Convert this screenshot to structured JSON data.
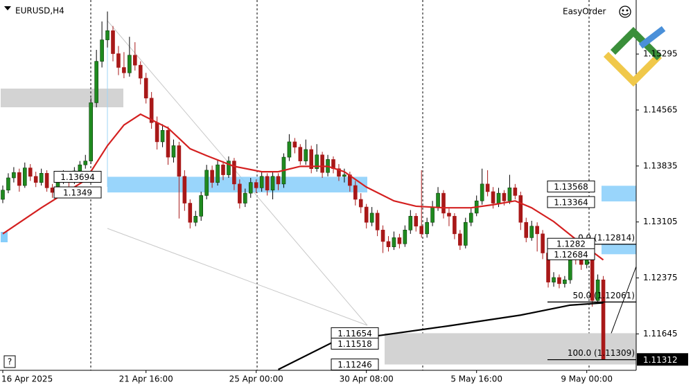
{
  "header": {
    "title": "EURUSD,H4",
    "tool": "EasyOrder",
    "help": "?"
  },
  "chart_data": {
    "type": "candlestick",
    "title": "EURUSD,H4",
    "categories": [
      "16 Apr 2025",
      null,
      null,
      null,
      null,
      null,
      null,
      null,
      null,
      null,
      null,
      null,
      null,
      null,
      null,
      null,
      null,
      null,
      null,
      null,
      null,
      null,
      null,
      null,
      null,
      null,
      "21 Apr 16:00",
      null,
      null,
      null,
      null,
      null,
      null,
      null,
      null,
      null,
      null,
      null,
      null,
      null,
      null,
      null,
      null,
      null,
      null,
      null,
      "25 Apr 00:00",
      null,
      null,
      null,
      null,
      null,
      null,
      null,
      null,
      null,
      null,
      null,
      null,
      null,
      null,
      null,
      null,
      null,
      null,
      null,
      "30 Apr 08:00",
      null,
      null,
      null,
      null,
      null,
      null,
      null,
      null,
      null,
      null,
      null,
      null,
      null,
      null,
      null,
      null,
      null,
      null,
      null,
      "5 May 16:00",
      null,
      null,
      null,
      null,
      null,
      null,
      null,
      null,
      null,
      null,
      null,
      null,
      null,
      null,
      null,
      null,
      null,
      null,
      null,
      "9 May 00:00",
      null,
      null,
      null
    ],
    "candles": [
      [
        1.134,
        1.1358,
        1.1335,
        1.1352
      ],
      [
        1.1352,
        1.1374,
        1.1348,
        1.1368
      ],
      [
        1.1368,
        1.1382,
        1.1362,
        1.1375
      ],
      [
        1.1375,
        1.138,
        1.135,
        1.1358
      ],
      [
        1.1358,
        1.1388,
        1.1355,
        1.1381
      ],
      [
        1.1381,
        1.1386,
        1.1364,
        1.137
      ],
      [
        1.137,
        1.1376,
        1.1356,
        1.1362
      ],
      [
        1.1362,
        1.138,
        1.1358,
        1.1374
      ],
      [
        1.1374,
        1.1378,
        1.135,
        1.1355
      ],
      [
        1.1355,
        1.136,
        1.1342,
        1.1349
      ],
      [
        1.1349,
        1.1372,
        1.1345,
        1.1366
      ],
      [
        1.1366,
        1.1378,
        1.136,
        1.1372
      ],
      [
        1.1372,
        1.1376,
        1.1356,
        1.1363
      ],
      [
        1.1363,
        1.1382,
        1.136,
        1.1377
      ],
      [
        1.1377,
        1.139,
        1.1372,
        1.1385
      ],
      [
        1.1385,
        1.1398,
        1.138,
        1.139
      ],
      [
        1.139,
        1.1472,
        1.1386,
        1.1466
      ],
      [
        1.1466,
        1.1535,
        1.146,
        1.152
      ],
      [
        1.152,
        1.1572,
        1.1512,
        1.1548
      ],
      [
        1.1548,
        1.1585,
        1.1538,
        1.156
      ],
      [
        1.156,
        1.1566,
        1.152,
        1.153
      ],
      [
        1.153,
        1.154,
        1.1502,
        1.1512
      ],
      [
        1.1512,
        1.1532,
        1.1498,
        1.1505
      ],
      [
        1.1505,
        1.1552,
        1.15,
        1.1528
      ],
      [
        1.1528,
        1.1545,
        1.1508,
        1.1515
      ],
      [
        1.1515,
        1.152,
        1.149,
        1.1498
      ],
      [
        1.1498,
        1.1505,
        1.1465,
        1.1472
      ],
      [
        1.1472,
        1.148,
        1.1432,
        1.144
      ],
      [
        1.144,
        1.1448,
        1.1405,
        1.1415
      ],
      [
        1.1415,
        1.1438,
        1.1408,
        1.143
      ],
      [
        1.143,
        1.1435,
        1.1385,
        1.1395
      ],
      [
        1.1395,
        1.1418,
        1.1388,
        1.141
      ],
      [
        1.141,
        1.1415,
        1.1315,
        1.137
      ],
      [
        1.137,
        1.1378,
        1.1325,
        1.1335
      ],
      [
        1.1335,
        1.134,
        1.1302,
        1.131
      ],
      [
        1.131,
        1.1325,
        1.1305,
        1.1318
      ],
      [
        1.1318,
        1.135,
        1.1312,
        1.1345
      ],
      [
        1.1345,
        1.1385,
        1.134,
        1.1378
      ],
      [
        1.1378,
        1.1384,
        1.1355,
        1.1362
      ],
      [
        1.1362,
        1.1392,
        1.1358,
        1.1385
      ],
      [
        1.1385,
        1.139,
        1.1365,
        1.1372
      ],
      [
        1.1372,
        1.1396,
        1.1368,
        1.139
      ],
      [
        1.139,
        1.1394,
        1.1352,
        1.136
      ],
      [
        1.136,
        1.1366,
        1.1328,
        1.1335
      ],
      [
        1.1335,
        1.1354,
        1.133,
        1.1348
      ],
      [
        1.1348,
        1.1368,
        1.1342,
        1.1362
      ],
      [
        1.1362,
        1.1366,
        1.1348,
        1.1355
      ],
      [
        1.1355,
        1.1376,
        1.135,
        1.137
      ],
      [
        1.137,
        1.1374,
        1.1345,
        1.1352
      ],
      [
        1.1352,
        1.1376,
        1.134,
        1.137
      ],
      [
        1.137,
        1.1374,
        1.1352,
        1.136
      ],
      [
        1.136,
        1.14,
        1.1355,
        1.1395
      ],
      [
        1.1395,
        1.1425,
        1.139,
        1.1415
      ],
      [
        1.1415,
        1.142,
        1.14,
        1.1408
      ],
      [
        1.1408,
        1.1412,
        1.1385,
        1.139
      ],
      [
        1.139,
        1.1418,
        1.1385,
        1.1405
      ],
      [
        1.1405,
        1.141,
        1.1374,
        1.138
      ],
      [
        1.138,
        1.1412,
        1.1376,
        1.1398
      ],
      [
        1.1398,
        1.1402,
        1.1368,
        1.1375
      ],
      [
        1.1375,
        1.1398,
        1.137,
        1.1392
      ],
      [
        1.1392,
        1.1396,
        1.1374,
        1.138
      ],
      [
        1.138,
        1.1386,
        1.1364,
        1.137
      ],
      [
        1.137,
        1.138,
        1.1362,
        1.1372
      ],
      [
        1.1372,
        1.1376,
        1.135,
        1.1358
      ],
      [
        1.1358,
        1.1364,
        1.1332,
        1.134
      ],
      [
        1.134,
        1.1348,
        1.1322,
        1.133
      ],
      [
        1.133,
        1.1334,
        1.1302,
        1.131
      ],
      [
        1.131,
        1.133,
        1.1305,
        1.1322
      ],
      [
        1.1322,
        1.1326,
        1.1292,
        1.13
      ],
      [
        1.13,
        1.1306,
        1.127,
        1.1285
      ],
      [
        1.1285,
        1.1292,
        1.1272,
        1.1278
      ],
      [
        1.1278,
        1.1298,
        1.1274,
        1.129
      ],
      [
        1.129,
        1.1295,
        1.1276,
        1.1282
      ],
      [
        1.1282,
        1.1306,
        1.1278,
        1.13
      ],
      [
        1.13,
        1.1326,
        1.1295,
        1.1318
      ],
      [
        1.1318,
        1.1322,
        1.1298,
        1.1305
      ],
      [
        1.1305,
        1.1378,
        1.129,
        1.1295
      ],
      [
        1.1295,
        1.1316,
        1.129,
        1.131
      ],
      [
        1.131,
        1.1338,
        1.1305,
        1.133
      ],
      [
        1.133,
        1.1356,
        1.1325,
        1.1348
      ],
      [
        1.1348,
        1.1352,
        1.1315,
        1.1322
      ],
      [
        1.1322,
        1.1328,
        1.1305,
        1.1318
      ],
      [
        1.1318,
        1.1322,
        1.1288,
        1.1295
      ],
      [
        1.1295,
        1.13,
        1.1274,
        1.128
      ],
      [
        1.128,
        1.1316,
        1.1276,
        1.131
      ],
      [
        1.131,
        1.1328,
        1.1305,
        1.1322
      ],
      [
        1.1322,
        1.1345,
        1.1318,
        1.1338
      ],
      [
        1.1338,
        1.138,
        1.1333,
        1.136
      ],
      [
        1.136,
        1.1378,
        1.1344,
        1.135
      ],
      [
        1.135,
        1.1356,
        1.1328,
        1.1335
      ],
      [
        1.1335,
        1.1355,
        1.133,
        1.1348
      ],
      [
        1.1348,
        1.1352,
        1.1332,
        1.1338
      ],
      [
        1.1338,
        1.1372,
        1.1334,
        1.1355
      ],
      [
        1.1355,
        1.136,
        1.134,
        1.1345
      ],
      [
        1.1345,
        1.135,
        1.13,
        1.131
      ],
      [
        1.131,
        1.1316,
        1.1284,
        1.129
      ],
      [
        1.129,
        1.1312,
        1.1286,
        1.1305
      ],
      [
        1.1305,
        1.131,
        1.1272,
        1.1295
      ],
      [
        1.1295,
        1.13,
        1.1262,
        1.127
      ],
      [
        1.127,
        1.1275,
        1.1225,
        1.1232
      ],
      [
        1.1232,
        1.1245,
        1.1226,
        1.1238
      ],
      [
        1.1238,
        1.1242,
        1.1224,
        1.123
      ],
      [
        1.123,
        1.124,
        1.1225,
        1.1235
      ],
      [
        1.1235,
        1.1272,
        1.123,
        1.1265
      ],
      [
        1.1265,
        1.1274,
        1.1255,
        1.1262
      ],
      [
        1.1262,
        1.1268,
        1.1248,
        1.1255
      ],
      [
        1.1255,
        1.127,
        1.125,
        1.1262
      ],
      [
        1.1262,
        1.1266,
        1.12,
        1.1208
      ],
      [
        1.1208,
        1.1242,
        1.1204,
        1.1235
      ],
      [
        1.1235,
        1.124,
        1.11309,
        1.11312
      ]
    ],
    "bull_color": "#1f8a1f",
    "bear_color": "#a81818",
    "moving_averages": [
      {
        "color": "#d42020",
        "x": [
          0,
          7,
          15,
          19,
          22,
          25,
          30,
          34,
          37,
          42,
          47,
          50,
          54,
          59,
          62,
          66,
          71,
          75,
          80,
          85,
          89,
          93,
          96,
          100,
          104,
          109
        ],
        "values": [
          1.1295,
          1.1329,
          1.1365,
          1.141,
          1.1437,
          1.1451,
          1.1433,
          1.1406,
          1.1397,
          1.1383,
          1.1376,
          1.1376,
          1.1383,
          1.1383,
          1.1376,
          1.1356,
          1.1338,
          1.1331,
          1.1329,
          1.1329,
          1.1333,
          1.1338,
          1.1329,
          1.1311,
          1.1288,
          1.1261
        ]
      },
      {
        "color": "#000000",
        "x": [
          50,
          60,
          69,
          81,
          94,
          103,
          109
        ],
        "values": [
          1.1118,
          1.1154,
          1.1163,
          1.1175,
          1.1189,
          1.1202,
          1.1205
        ]
      }
    ],
    "price_labels": [
      1.13694,
      1.1349,
      1.13568,
      1.13364,
      1.1282,
      1.12684,
      1.11654,
      1.11518,
      1.11246
    ],
    "fibonacci": [
      {
        "value": 1.12814,
        "label": "0.0 (1.12814)"
      },
      {
        "value": 1.12061,
        "label": "50.0 (1.12061)"
      },
      {
        "value": 1.11309,
        "label": "100.0 (1.11309)"
      }
    ],
    "last_price": 1.11312,
    "ylim": [
      1.1117,
      1.16
    ],
    "yticks": [
      1.15295,
      1.14565,
      1.13835,
      1.13105,
      1.12375,
      1.11645
    ]
  }
}
